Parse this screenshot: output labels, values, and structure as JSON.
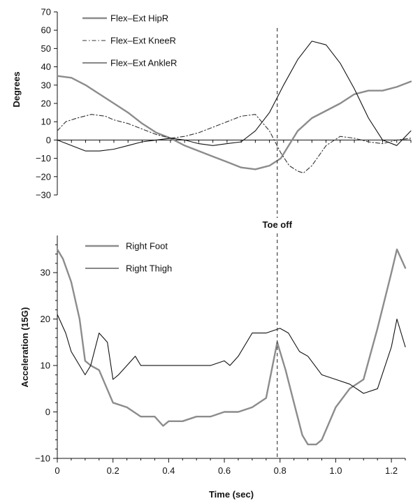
{
  "chart_data": [
    {
      "type": "line",
      "ylabel": "Degrees",
      "ylim": [
        -30,
        70
      ],
      "yticks": [
        70,
        60,
        50,
        40,
        30,
        20,
        10,
        0,
        -10,
        -20,
        -30
      ],
      "ytick_labels": [
        "70",
        "60",
        "50",
        "40",
        "30",
        "20",
        "10",
        "0",
        "−10",
        "−20",
        "−30"
      ],
      "xlim": [
        0,
        1.25
      ],
      "legend_position": "top-left",
      "series": [
        {
          "name": "Flex–Ext HipR",
          "color": "#8c8c8c",
          "style": "solid-thick",
          "x": [
            0,
            0.05,
            0.1,
            0.15,
            0.2,
            0.25,
            0.3,
            0.35,
            0.4,
            0.45,
            0.5,
            0.55,
            0.6,
            0.65,
            0.7,
            0.75,
            0.79,
            0.85,
            0.9,
            0.95,
            1.0,
            1.05,
            1.1,
            1.15,
            1.2,
            1.25
          ],
          "y": [
            35,
            34,
            30,
            25,
            20,
            15,
            9,
            4,
            1,
            -3,
            -6,
            -9,
            -12,
            -15,
            -16,
            -14,
            -10,
            5,
            12,
            16,
            20,
            25,
            27,
            27,
            29,
            32
          ]
        },
        {
          "name": "Flex–Ext KneeR",
          "color": "#333333",
          "style": "dash-dot",
          "x": [
            0,
            0.03,
            0.07,
            0.12,
            0.17,
            0.2,
            0.25,
            0.3,
            0.35,
            0.4,
            0.45,
            0.5,
            0.55,
            0.6,
            0.65,
            0.7,
            0.75,
            0.79,
            0.82,
            0.85,
            0.87,
            0.9,
            0.95,
            1.0,
            1.05,
            1.1,
            1.15,
            1.2,
            1.25
          ],
          "y": [
            5,
            10,
            12,
            14,
            13,
            11,
            9,
            6,
            3,
            1,
            2,
            4,
            7,
            10,
            13,
            14,
            5,
            -7,
            -14,
            -17,
            -18,
            -14,
            -3,
            2,
            1,
            -1,
            -2,
            0,
            1
          ]
        },
        {
          "name": "Flex–Ext AnkleR",
          "color": "#111111",
          "style": "solid-thin",
          "x": [
            0,
            0.05,
            0.1,
            0.15,
            0.2,
            0.25,
            0.3,
            0.35,
            0.4,
            0.45,
            0.5,
            0.55,
            0.6,
            0.65,
            0.7,
            0.75,
            0.8,
            0.85,
            0.9,
            0.95,
            1.0,
            1.05,
            1.1,
            1.15,
            1.2,
            1.25
          ],
          "y": [
            0,
            -3,
            -6,
            -6,
            -5,
            -3,
            -1,
            0,
            1,
            0,
            -2,
            -3,
            -2,
            -1,
            5,
            15,
            30,
            44,
            54,
            52,
            42,
            28,
            12,
            0,
            -3,
            5
          ]
        }
      ]
    },
    {
      "type": "line",
      "xlabel": "Time (sec)",
      "ylabel": "Acceleration (15G)",
      "xlim": [
        0,
        1.25
      ],
      "ylim": [
        -10,
        38
      ],
      "xticks": [
        0,
        0.2,
        0.4,
        0.6,
        0.8,
        1.0,
        1.2
      ],
      "xtick_labels": [
        "0",
        "0.2",
        "0.4",
        "0.6",
        "0.8",
        "1.0",
        "1.2"
      ],
      "yticks": [
        -10,
        0,
        10,
        20,
        30
      ],
      "ytick_labels": [
        "−10",
        "0",
        "10",
        "20",
        "30"
      ],
      "legend_position": "top-left",
      "series": [
        {
          "name": "Right Foot",
          "color": "#8c8c8c",
          "style": "solid-thick",
          "x": [
            0,
            0.02,
            0.05,
            0.08,
            0.1,
            0.12,
            0.15,
            0.2,
            0.25,
            0.3,
            0.35,
            0.38,
            0.4,
            0.45,
            0.5,
            0.55,
            0.6,
            0.65,
            0.7,
            0.75,
            0.79,
            0.82,
            0.85,
            0.88,
            0.9,
            0.93,
            0.95,
            1.0,
            1.05,
            1.1,
            1.15,
            1.2,
            1.22,
            1.25
          ],
          "y": [
            35,
            33,
            28,
            20,
            11,
            10,
            9,
            2,
            1,
            -1,
            -1,
            -3,
            -2,
            -2,
            -1,
            -1,
            0,
            0,
            1,
            3,
            15,
            9,
            2,
            -5,
            -7,
            -7,
            -6,
            1,
            5,
            7,
            18,
            30,
            35,
            31
          ]
        },
        {
          "name": "Right Thigh",
          "color": "#111111",
          "style": "solid-thin",
          "x": [
            0,
            0.03,
            0.05,
            0.08,
            0.1,
            0.12,
            0.15,
            0.18,
            0.2,
            0.22,
            0.25,
            0.28,
            0.3,
            0.35,
            0.4,
            0.45,
            0.5,
            0.55,
            0.6,
            0.62,
            0.65,
            0.7,
            0.75,
            0.8,
            0.83,
            0.85,
            0.87,
            0.9,
            0.95,
            1.0,
            1.05,
            1.1,
            1.15,
            1.2,
            1.22,
            1.25
          ],
          "y": [
            21,
            17,
            13,
            10,
            8,
            10,
            17,
            15,
            7,
            8,
            10,
            12,
            10,
            10,
            10,
            10,
            10,
            10,
            11,
            10,
            12,
            17,
            17,
            18,
            17,
            15,
            13,
            12,
            8,
            7,
            6,
            4,
            5,
            14,
            20,
            14
          ]
        }
      ]
    }
  ],
  "annotation": {
    "label": "Toe off",
    "x": 0.79
  }
}
